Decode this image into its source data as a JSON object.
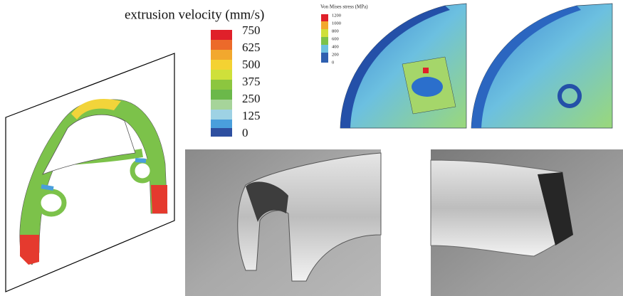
{
  "left_colorbar": {
    "title": "extrusion velocity (mm/s)",
    "labels": [
      "750",
      "625",
      "500",
      "375",
      "250",
      "125",
      "0"
    ]
  },
  "right_colorbar": {
    "title": "Von Mises stress (MPa)",
    "labels": [
      "1200",
      "1000",
      "800",
      "600",
      "400",
      "200",
      "0"
    ]
  }
}
